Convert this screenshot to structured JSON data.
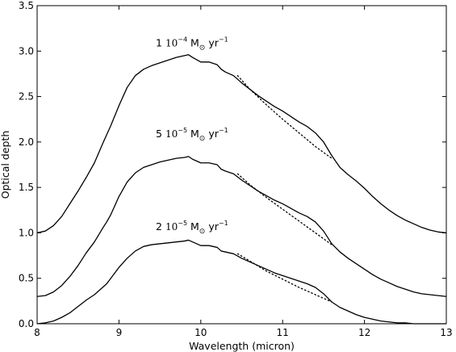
{
  "chart_data": {
    "type": "line",
    "title": "",
    "xlabel": "Wavelength (micron)",
    "ylabel": "Optical depth",
    "xlim": [
      8,
      13
    ],
    "ylim": [
      0,
      3.5
    ],
    "x_ticks": [
      8,
      9,
      10,
      11,
      12,
      13
    ],
    "y_ticks": [
      "0.0",
      "0.5",
      "1.0",
      "1.5",
      "2.0",
      "2.5",
      "3.0",
      "3.5"
    ],
    "grid": false,
    "legend": "none",
    "annotations": [
      {
        "num": "1",
        "mid": "10",
        "exp": "−4",
        "unit": "M",
        "sun": "⊙",
        "rest": "yr",
        "rest_exp": "−1",
        "x": 9.45,
        "y": 3.05
      },
      {
        "num": "5",
        "mid": "10",
        "exp": "−5",
        "unit": "M",
        "sun": "⊙",
        "rest": "yr",
        "rest_exp": "−1",
        "x": 9.45,
        "y": 2.05
      },
      {
        "num": "2",
        "mid": "10",
        "exp": "−5",
        "unit": "M",
        "sun": "⊙",
        "rest": "yr",
        "rest_exp": "−1",
        "x": 9.45,
        "y": 1.03
      }
    ],
    "series": [
      {
        "style": "solid",
        "x": [
          8.0,
          8.1,
          8.2,
          8.3,
          8.4,
          8.5,
          8.6,
          8.7,
          8.8,
          8.85,
          8.9,
          9.0,
          9.1,
          9.2,
          9.3,
          9.4,
          9.5,
          9.6,
          9.7,
          9.8,
          9.85,
          9.9,
          10.0,
          10.1,
          10.2,
          10.25,
          10.3,
          10.4,
          10.5,
          10.6,
          10.7,
          10.8,
          10.9,
          11.0,
          11.1,
          11.2,
          11.3,
          11.4,
          11.5,
          11.6,
          11.7,
          11.8,
          11.9,
          12.0,
          12.1,
          12.2,
          12.3,
          12.4,
          12.5,
          12.6,
          12.7,
          12.8,
          12.9,
          13.0
        ],
        "y": [
          1.0,
          1.02,
          1.08,
          1.18,
          1.32,
          1.46,
          1.61,
          1.77,
          1.98,
          2.08,
          2.18,
          2.4,
          2.6,
          2.73,
          2.8,
          2.84,
          2.87,
          2.9,
          2.93,
          2.95,
          2.96,
          2.93,
          2.88,
          2.88,
          2.85,
          2.8,
          2.77,
          2.73,
          2.65,
          2.58,
          2.51,
          2.45,
          2.39,
          2.34,
          2.28,
          2.22,
          2.17,
          2.1,
          2.0,
          1.85,
          1.72,
          1.64,
          1.57,
          1.49,
          1.4,
          1.32,
          1.25,
          1.19,
          1.14,
          1.1,
          1.06,
          1.03,
          1.01,
          1.0
        ]
      },
      {
        "style": "dotted",
        "x": [
          10.45,
          10.6,
          10.8,
          11.0,
          11.2,
          11.4,
          11.6
        ],
        "y": [
          2.73,
          2.58,
          2.41,
          2.25,
          2.1,
          1.95,
          1.82
        ]
      },
      {
        "style": "solid",
        "x": [
          8.0,
          8.1,
          8.2,
          8.3,
          8.4,
          8.5,
          8.6,
          8.7,
          8.8,
          8.85,
          8.9,
          9.0,
          9.1,
          9.2,
          9.3,
          9.4,
          9.5,
          9.6,
          9.7,
          9.8,
          9.85,
          9.9,
          10.0,
          10.1,
          10.2,
          10.25,
          10.3,
          10.4,
          10.5,
          10.6,
          10.7,
          10.8,
          10.9,
          11.0,
          11.1,
          11.2,
          11.3,
          11.4,
          11.5,
          11.6,
          11.7,
          11.8,
          11.9,
          12.0,
          12.1,
          12.2,
          12.3,
          12.4,
          12.5,
          12.6,
          12.7,
          12.8,
          12.9,
          13.0
        ],
        "y": [
          0.3,
          0.31,
          0.35,
          0.42,
          0.52,
          0.64,
          0.78,
          0.9,
          1.05,
          1.12,
          1.2,
          1.4,
          1.56,
          1.66,
          1.72,
          1.75,
          1.78,
          1.8,
          1.82,
          1.83,
          1.84,
          1.81,
          1.77,
          1.77,
          1.75,
          1.7,
          1.68,
          1.65,
          1.58,
          1.52,
          1.46,
          1.41,
          1.36,
          1.32,
          1.27,
          1.22,
          1.18,
          1.12,
          1.02,
          0.88,
          0.79,
          0.72,
          0.66,
          0.6,
          0.54,
          0.49,
          0.45,
          0.41,
          0.38,
          0.35,
          0.33,
          0.32,
          0.31,
          0.3
        ]
      },
      {
        "style": "dotted",
        "x": [
          10.45,
          10.6,
          10.8,
          11.0,
          11.2,
          11.4,
          11.6
        ],
        "y": [
          1.65,
          1.53,
          1.39,
          1.26,
          1.13,
          1.0,
          0.87
        ]
      },
      {
        "style": "solid",
        "x": [
          8.0,
          8.1,
          8.2,
          8.3,
          8.4,
          8.5,
          8.6,
          8.7,
          8.8,
          8.85,
          8.9,
          9.0,
          9.1,
          9.2,
          9.3,
          9.4,
          9.5,
          9.6,
          9.7,
          9.8,
          9.85,
          9.9,
          10.0,
          10.1,
          10.2,
          10.25,
          10.3,
          10.4,
          10.5,
          10.6,
          10.7,
          10.8,
          10.9,
          11.0,
          11.1,
          11.2,
          11.3,
          11.4,
          11.5,
          11.6,
          11.7,
          11.8,
          11.9,
          12.0,
          12.1,
          12.2,
          12.3,
          12.4,
          12.5,
          12.6,
          12.7,
          12.8,
          12.9,
          13.0
        ],
        "y": [
          0.0,
          0.01,
          0.03,
          0.07,
          0.12,
          0.19,
          0.26,
          0.32,
          0.4,
          0.44,
          0.5,
          0.62,
          0.72,
          0.8,
          0.85,
          0.87,
          0.88,
          0.89,
          0.9,
          0.91,
          0.92,
          0.9,
          0.86,
          0.86,
          0.84,
          0.8,
          0.79,
          0.77,
          0.72,
          0.68,
          0.64,
          0.6,
          0.56,
          0.53,
          0.5,
          0.47,
          0.44,
          0.4,
          0.33,
          0.24,
          0.18,
          0.14,
          0.1,
          0.07,
          0.05,
          0.03,
          0.02,
          0.01,
          0.01,
          0.0,
          0.0,
          0.0,
          0.0,
          0.0
        ]
      },
      {
        "style": "dotted",
        "x": [
          10.45,
          10.6,
          10.8,
          11.0,
          11.2,
          11.4,
          11.6
        ],
        "y": [
          0.77,
          0.69,
          0.58,
          0.49,
          0.4,
          0.32,
          0.24
        ]
      }
    ]
  }
}
